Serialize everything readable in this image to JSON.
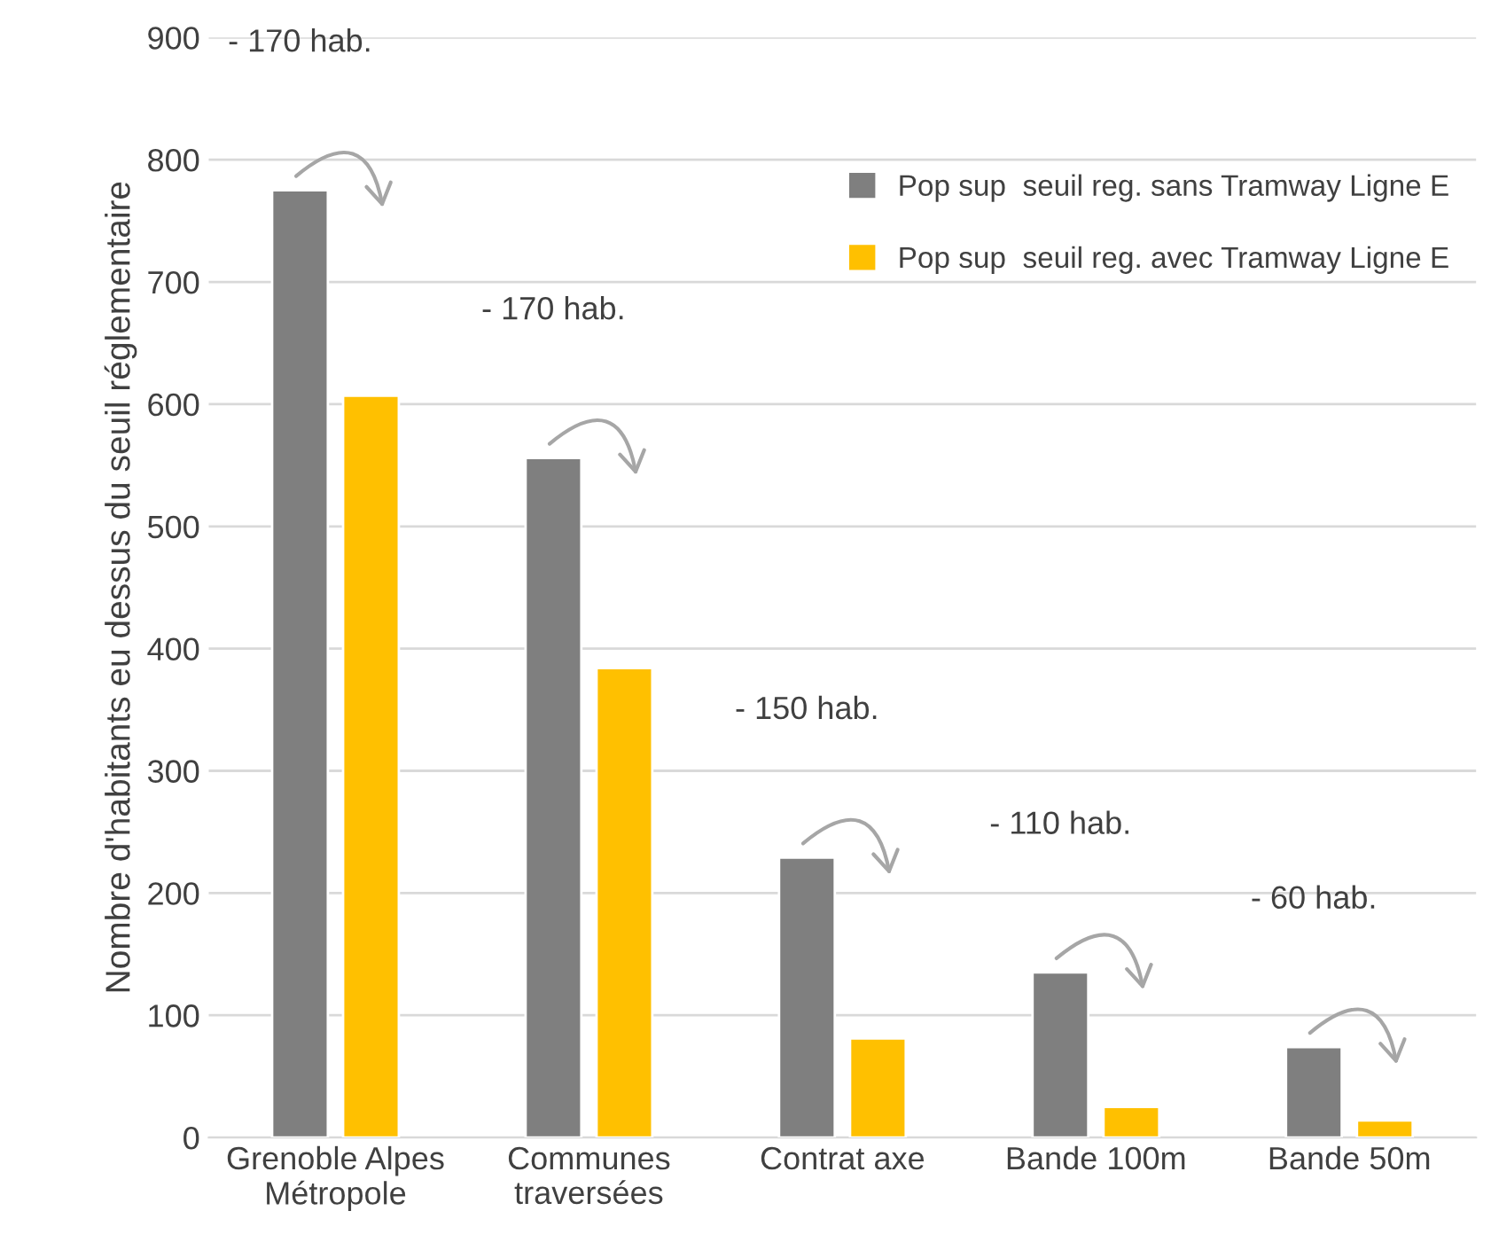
{
  "chart_data": {
    "type": "bar",
    "ylabel": "Nombre d'habitants eu dessus du seuil réglementaire",
    "categories": [
      "Grenoble Alpes\nMétropole",
      "Communes\ntraversées",
      "Contrat axe",
      "Bande 100m",
      "Bande 50m"
    ],
    "series": [
      {
        "name": "Pop sup  seuil reg. sans Tramway Ligne E",
        "color": "#7f7f7f",
        "values": [
          775,
          556,
          229,
          135,
          74
        ]
      },
      {
        "name": "Pop sup  seuil reg. avec Tramway Ligne E",
        "color": "#ffc000",
        "values": [
          607,
          384,
          81,
          25,
          14
        ]
      }
    ],
    "ylim": [
      0,
      900
    ],
    "yticks": [
      0,
      100,
      200,
      300,
      400,
      500,
      600,
      700,
      800,
      900
    ],
    "grid": "y",
    "legend": "top right",
    "annotations": [
      "- 170 hab.",
      "- 170 hab.",
      "- 150 hab.",
      "- 110 hab.",
      "- 60 hab."
    ]
  }
}
